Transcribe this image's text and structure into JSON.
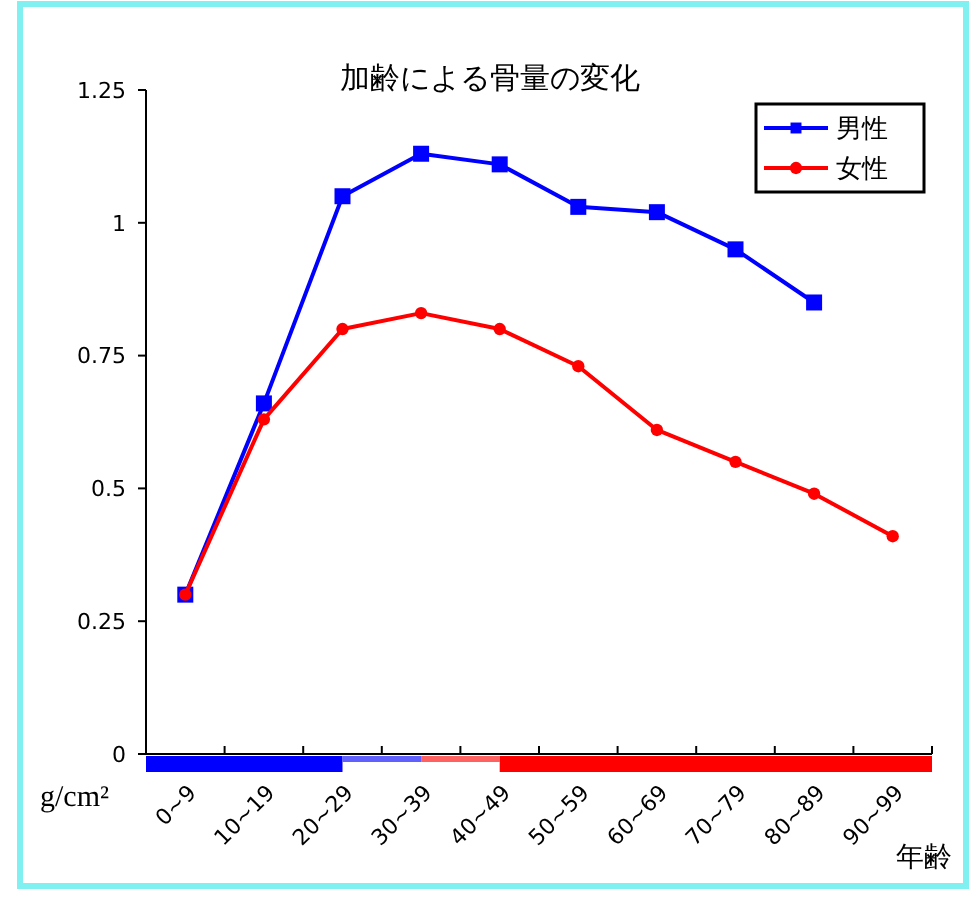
{
  "chart_data": {
    "type": "line",
    "title": "加齢による骨量の変化",
    "xlabel": "年齢",
    "ylabel": "g/cm²",
    "categories": [
      "0~9",
      "10~19",
      "20~29",
      "30~39",
      "40~49",
      "50~59",
      "60~69",
      "70~79",
      "80~89",
      "90~99"
    ],
    "series": [
      {
        "name": "男性",
        "color": "#0000ff",
        "marker": "square",
        "values": [
          0.3,
          0.66,
          1.05,
          1.13,
          1.11,
          1.03,
          1.02,
          0.95,
          0.85,
          null
        ]
      },
      {
        "name": "女性",
        "color": "#ff0000",
        "marker": "circle",
        "values": [
          0.3,
          0.63,
          0.8,
          0.83,
          0.8,
          0.73,
          0.61,
          0.55,
          0.49,
          0.41
        ]
      }
    ],
    "ylim": [
      0,
      1.25
    ],
    "yticks": [
      {
        "value": 0,
        "label": "0"
      },
      {
        "value": 0.25,
        "label": "0.25"
      },
      {
        "value": 0.5,
        "label": "0.5"
      },
      {
        "value": 0.75,
        "label": "0.75"
      },
      {
        "value": 1,
        "label": "1"
      },
      {
        "value": 1.25,
        "label": "1.25"
      }
    ],
    "grid": false,
    "legend": "top right",
    "line_style": "solid"
  }
}
